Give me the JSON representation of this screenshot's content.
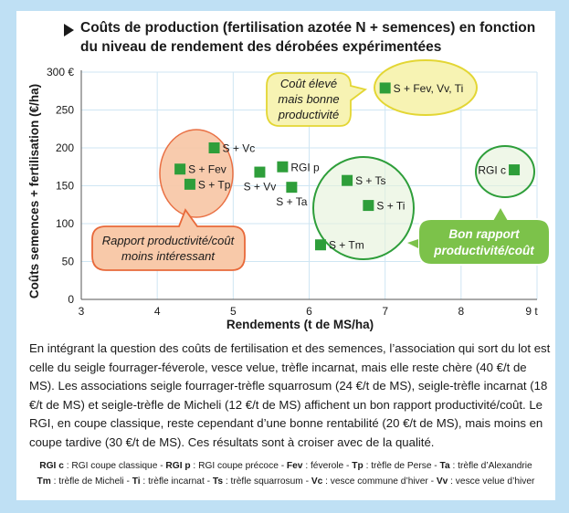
{
  "title": "Coûts de production (fertilisation azotée N + semences) en fonction du niveau de rendement des dérobées expérimentées",
  "colors": {
    "frame": "#bfe0f4",
    "marker": "#2e9e3a",
    "grid": "#cfe6f3",
    "bubble_orange_fill": "#f8c9a9",
    "bubble_orange_stroke": "#e8693a",
    "bubble_yellow_fill": "#f7f3b3",
    "bubble_yellow_stroke": "#e3d634",
    "bubble_green_fill": "#7cc24a",
    "ellipse_green_stroke": "#2e9e3a",
    "ellipse_green_fill": "#e4f2d8"
  },
  "chart_data": {
    "type": "scatter",
    "xlabel": "Rendements (t de MS/ha)",
    "ylabel": "Coûts semences + fertilisation (€/ha)",
    "xlim": [
      3,
      9
    ],
    "ylim": [
      0,
      300
    ],
    "x_ticks": [
      "3",
      "4",
      "5",
      "6",
      "7",
      "8",
      "9 t"
    ],
    "y_ticks": [
      "0",
      "50",
      "100",
      "150",
      "200",
      "250",
      "300 €"
    ],
    "grid": true,
    "points": [
      {
        "label": "S + Vc",
        "x": 4.75,
        "y": 200,
        "label_pos": "right"
      },
      {
        "label": "S + Fev",
        "x": 4.3,
        "y": 172,
        "label_pos": "right"
      },
      {
        "label": "S + Tp",
        "x": 4.43,
        "y": 152,
        "label_pos": "right"
      },
      {
        "label": "S + Vv",
        "x": 5.35,
        "y": 168,
        "label_pos": "below"
      },
      {
        "label": "RGI p",
        "x": 5.65,
        "y": 175,
        "label_pos": "right"
      },
      {
        "label": "S + Ta",
        "x": 5.77,
        "y": 148,
        "label_pos": "below"
      },
      {
        "label": "S + Ts",
        "x": 6.5,
        "y": 157,
        "label_pos": "right"
      },
      {
        "label": "S + Ti",
        "x": 6.78,
        "y": 124,
        "label_pos": "right"
      },
      {
        "label": "S + Tm",
        "x": 6.15,
        "y": 72,
        "label_pos": "right"
      },
      {
        "label": "S + Fev, Vv, Ti",
        "x": 7.0,
        "y": 279,
        "label_pos": "right"
      },
      {
        "label": "RGI c",
        "x": 8.7,
        "y": 171,
        "label_pos": "left"
      }
    ],
    "annotations": [
      {
        "text": "Rapport productivité/coût moins intéressant",
        "lines": [
          "Rapport productivité/coût",
          "moins intéressant"
        ],
        "style": "orange-bubble"
      },
      {
        "text": "Coût élevé mais bonne productivité",
        "lines": [
          "Coût élevé",
          "mais bonne",
          "productivité"
        ],
        "style": "yellow-bubble"
      },
      {
        "text": "Bon rapport productivité/coût",
        "lines": [
          "Bon rapport",
          "productivité/coût"
        ],
        "style": "green-bubble"
      }
    ]
  },
  "paragraph": "En intégrant la question des coûts de fertilisation et des semences, l’association qui sort du lot est celle du seigle fourrager-féverole, vesce velue, trèfle incarnat, mais elle reste chère (40 €/t de MS). Les associations seigle fourrager-trèfle squarrosum (24 €/t de MS), seigle-trèfle incarnat (18 €/t de MS) et seigle-trèfle de Micheli (12 €/t de MS) affichent un bon rapport productivité/coût. Le RGI, en coupe classique, reste cependant d’une bonne rentabilité (20 €/t de MS), mais moins en coupe tardive (30 €/t de MS). Ces résultats sont à croiser avec de la qualité.",
  "legend": {
    "line1": [
      {
        "abbr": "RGI c",
        "def": " : RGI coupe classique - "
      },
      {
        "abbr": "RGI p",
        "def": " : RGI coupe précoce - "
      },
      {
        "abbr": "Fev",
        "def": " : féverole - "
      },
      {
        "abbr": "Tp",
        "def": " : trèfle de Perse - "
      },
      {
        "abbr": "Ta",
        "def": " : trèfle d’Alexandrie"
      }
    ],
    "line2": [
      {
        "abbr": "Tm",
        "def": " : trèfle de Micheli - "
      },
      {
        "abbr": "Ti",
        "def": " : trèfle incarnat - "
      },
      {
        "abbr": "Ts",
        "def": " : trèfle squarrosum - "
      },
      {
        "abbr": "Vc",
        "def": " : vesce commune d’hiver - "
      },
      {
        "abbr": "Vv",
        "def": " : vesce velue d’hiver"
      }
    ]
  }
}
